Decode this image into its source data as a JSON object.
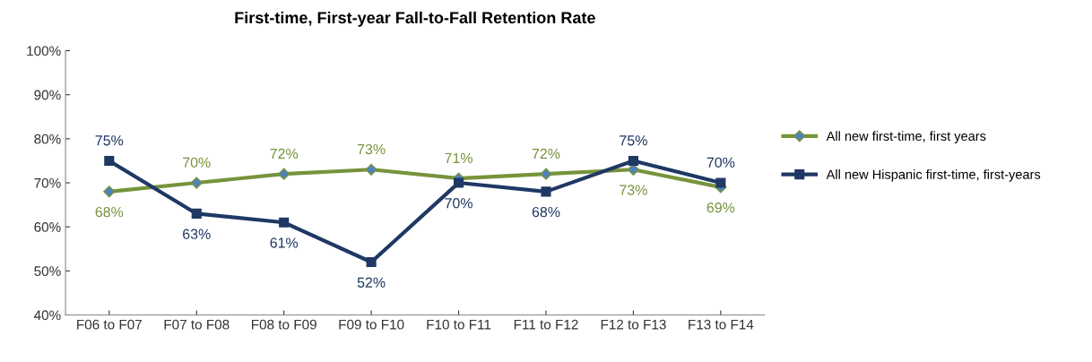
{
  "chart_data": {
    "type": "line",
    "title": "First-time, First-year Fall-to-Fall Retention Rate",
    "categories": [
      "F06 to F07",
      "F07 to F08",
      "F08 to F09",
      "F09 to F10",
      "F10 to F11",
      "F11 to F12",
      "F12 to F13",
      "F13 to F14"
    ],
    "series": [
      {
        "name": "All new first-time, first years",
        "color": "#77933c",
        "marker": "diamond",
        "values": [
          68,
          70,
          72,
          73,
          71,
          72,
          73,
          69
        ],
        "value_labels": [
          "68%",
          "70%",
          "72%",
          "73%",
          "71%",
          "72%",
          "73%",
          "69%"
        ]
      },
      {
        "name": "All new Hispanic first-time, first-years",
        "color": "#1f3864",
        "marker": "square",
        "values": [
          75,
          63,
          61,
          52,
          70,
          68,
          75,
          70
        ],
        "value_labels": [
          "75%",
          "63%",
          "61%",
          "52%",
          "70%",
          "68%",
          "75%",
          "70%"
        ]
      }
    ],
    "ylim": [
      40,
      100
    ],
    "yticks": [
      {
        "value": 40,
        "label": "40%"
      },
      {
        "value": 50,
        "label": "50%"
      },
      {
        "value": 60,
        "label": "60%"
      },
      {
        "value": 70,
        "label": "70%"
      },
      {
        "value": 80,
        "label": "80%"
      },
      {
        "value": 90,
        "label": "90%"
      },
      {
        "value": 100,
        "label": "100%"
      }
    ],
    "grid": false,
    "legend": "right",
    "line_style": "solid"
  }
}
